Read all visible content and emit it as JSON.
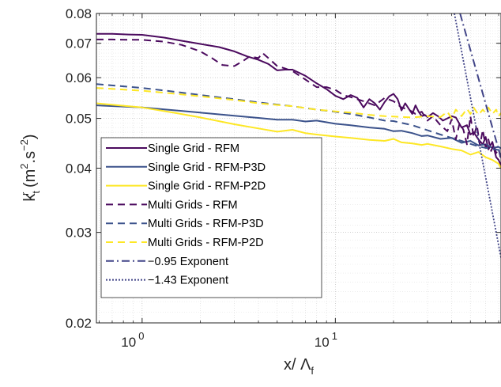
{
  "chart_data": {
    "type": "line",
    "title": "",
    "xlabel": "x/ Λ_f",
    "ylabel": "k_t^r (m^2.s^-2)",
    "x_scale": "log",
    "y_scale": "log",
    "xlim": [
      0.58,
      72
    ],
    "ylim": [
      0.02,
      0.08
    ],
    "grid": true,
    "minor_grid": true,
    "legend_position": "left-center",
    "y_ticks": [
      "0.02",
      "0.03",
      "0.04",
      "0.05",
      "0.06",
      "0.07",
      "0.08"
    ],
    "x_ticks": [
      {
        "base": "10",
        "exp": "0",
        "value": 1
      },
      {
        "base": "10",
        "exp": "1",
        "value": 10
      }
    ],
    "series": [
      {
        "name": "Single Grid - RFM",
        "color": "#4b0a5e",
        "dash": "solid",
        "x": [
          0.58,
          0.7,
          0.85,
          1.0,
          1.3,
          1.6,
          2.0,
          2.5,
          3.0,
          3.5,
          4.0,
          4.5,
          5.0,
          5.5,
          6.0,
          7.0,
          8.0,
          9.0,
          10,
          11,
          12,
          13,
          14,
          15,
          16,
          17,
          18,
          19,
          20,
          21,
          22,
          23,
          24,
          25,
          26,
          27,
          28,
          29,
          30,
          32,
          34,
          36,
          38,
          40,
          42,
          45,
          48,
          50,
          52,
          55,
          58,
          60,
          62,
          65,
          68,
          70,
          72
        ],
        "y": [
          0.073,
          0.073,
          0.0728,
          0.0727,
          0.0718,
          0.0708,
          0.0698,
          0.0688,
          0.0675,
          0.066,
          0.065,
          0.0638,
          0.062,
          0.0622,
          0.0622,
          0.0605,
          0.0585,
          0.057,
          0.0553,
          0.0545,
          0.0555,
          0.0548,
          0.0525,
          0.0545,
          0.0535,
          0.052,
          0.0538,
          0.0552,
          0.0558,
          0.0545,
          0.0518,
          0.0535,
          0.0522,
          0.051,
          0.053,
          0.0515,
          0.0505,
          0.0508,
          0.0503,
          0.0512,
          0.0505,
          0.0495,
          0.05,
          0.0505,
          0.0502,
          0.048,
          0.0485,
          0.0465,
          0.047,
          0.0455,
          0.0445,
          0.046,
          0.0435,
          0.045,
          0.042,
          0.0415,
          0.0405
        ]
      },
      {
        "name": "Single Grid - RFM-P3D",
        "color": "#3b528b",
        "dash": "solid",
        "x": [
          0.58,
          1.0,
          2.0,
          3.0,
          4.0,
          5.0,
          6.0,
          7.0,
          8.0,
          10,
          12,
          15,
          18,
          20,
          22,
          25,
          28,
          30,
          35,
          40,
          45,
          50,
          55,
          60,
          65,
          70,
          72
        ],
        "y": [
          0.053,
          0.0525,
          0.0513,
          0.0506,
          0.0501,
          0.0497,
          0.0497,
          0.0493,
          0.0495,
          0.0488,
          0.0485,
          0.048,
          0.0477,
          0.0472,
          0.0473,
          0.0468,
          0.0462,
          0.0463,
          0.0456,
          0.0458,
          0.0448,
          0.0452,
          0.0443,
          0.0445,
          0.0438,
          0.044,
          0.0437
        ]
      },
      {
        "name": "Single Grid - RFM-P2D",
        "color": "#fde725",
        "dash": "solid",
        "x": [
          0.58,
          1.0,
          1.5,
          2.0,
          3.0,
          4.0,
          5.0,
          6.0,
          7.0,
          8.0,
          10,
          12,
          15,
          18,
          20,
          22,
          25,
          28,
          30,
          35,
          40,
          45,
          50,
          55,
          60,
          65,
          70,
          72
        ],
        "y": [
          0.0535,
          0.0525,
          0.0512,
          0.0502,
          0.0487,
          0.0478,
          0.0471,
          0.0475,
          0.0468,
          0.0465,
          0.0461,
          0.0458,
          0.0454,
          0.0452,
          0.0456,
          0.0449,
          0.0447,
          0.0444,
          0.0446,
          0.0441,
          0.0436,
          0.0433,
          0.0425,
          0.043,
          0.042,
          0.0415,
          0.0408,
          0.04
        ]
      },
      {
        "name": "Multi Grids - RFM",
        "color": "#4b0a5e",
        "dash": "dashed",
        "x": [
          0.58,
          0.7,
          0.85,
          1.0,
          1.3,
          1.6,
          2.0,
          2.3,
          2.6,
          3.0,
          3.3,
          3.6,
          4.0,
          4.2,
          4.5,
          5.0,
          5.5,
          6.0,
          7.0,
          8.0,
          9.0,
          10,
          11,
          12,
          14,
          16,
          18,
          20,
          22,
          24,
          26,
          28,
          30,
          32,
          35,
          38,
          40,
          42,
          44,
          46,
          48,
          50,
          52,
          54,
          56,
          58,
          60,
          62,
          64,
          66,
          68,
          70,
          72
        ],
        "y": [
          0.0712,
          0.0712,
          0.0711,
          0.0711,
          0.0705,
          0.0695,
          0.0675,
          0.0655,
          0.0635,
          0.0632,
          0.0645,
          0.066,
          0.0655,
          0.067,
          0.0655,
          0.0632,
          0.0625,
          0.0618,
          0.0595,
          0.0575,
          0.0575,
          0.0568,
          0.0555,
          0.055,
          0.054,
          0.053,
          0.0548,
          0.054,
          0.0525,
          0.052,
          0.051,
          0.0515,
          0.0495,
          0.0505,
          0.0485,
          0.0472,
          0.0498,
          0.0455,
          0.049,
          0.0475,
          0.0445,
          0.0505,
          0.046,
          0.0485,
          0.0443,
          0.0475,
          0.0438,
          0.0455,
          0.0432,
          0.0445,
          0.0428,
          0.0436,
          0.0415
        ]
      },
      {
        "name": "Multi Grids - RFM-P3D",
        "color": "#3b528b",
        "dash": "dashed",
        "x": [
          0.58,
          1.0,
          1.5,
          2.0,
          3.0,
          4.0,
          5.0,
          6.0,
          8.0,
          10,
          12,
          15,
          18,
          20,
          25,
          30,
          35,
          40,
          45,
          50,
          55,
          60,
          65,
          70,
          72
        ],
        "y": [
          0.0583,
          0.0573,
          0.0563,
          0.0555,
          0.0545,
          0.0537,
          0.0532,
          0.0528,
          0.052,
          0.0515,
          0.051,
          0.0502,
          0.0495,
          0.0494,
          0.0485,
          0.0474,
          0.0465,
          0.0458,
          0.0452,
          0.0446,
          0.0441,
          0.0438,
          0.0436,
          0.0434,
          0.0433
        ]
      },
      {
        "name": "Multi Grids - RFM-P2D",
        "color": "#fde725",
        "dash": "dashed",
        "x": [
          0.58,
          1.0,
          1.5,
          2.0,
          3.0,
          4.0,
          5.0,
          6.0,
          8.0,
          10,
          12,
          15,
          18,
          20,
          25,
          30,
          35,
          38,
          40,
          42,
          45,
          48,
          50,
          52,
          55,
          58,
          60,
          62,
          65,
          68,
          70,
          72
        ],
        "y": [
          0.0573,
          0.0566,
          0.0558,
          0.0552,
          0.0543,
          0.0535,
          0.0531,
          0.0528,
          0.052,
          0.0516,
          0.0513,
          0.0508,
          0.0505,
          0.0504,
          0.0502,
          0.0505,
          0.0503,
          0.0515,
          0.05,
          0.052,
          0.0505,
          0.0522,
          0.051,
          0.0525,
          0.0508,
          0.052,
          0.0512,
          0.0525,
          0.051,
          0.052,
          0.0505,
          0.0512
        ]
      },
      {
        "name": "−0.95 Exponent",
        "color": "#414487",
        "dash": "dashdot",
        "x": [
          44.2,
          72
        ],
        "y": [
          0.08,
          0.0419
        ]
      },
      {
        "name": "−1.43 Exponent",
        "color": "#414487",
        "dash": "dotted",
        "x": [
          41.3,
          72
        ],
        "y": [
          0.08,
          0.0268
        ]
      }
    ]
  }
}
